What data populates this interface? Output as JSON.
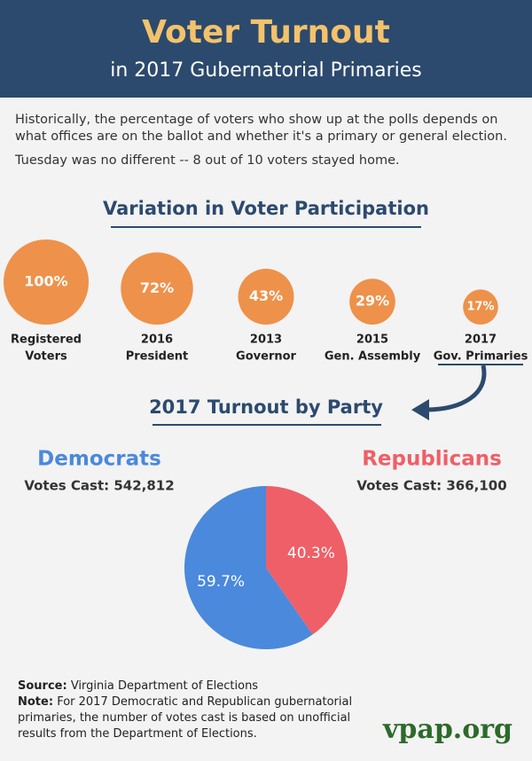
{
  "header": {
    "title": "Voter Turnout",
    "subtitle": "in 2017 Gubernatorial Primaries"
  },
  "intro": [
    "Historically, the percentage of voters who show up at the polls depends on what offices are on the ballot and whether it's a primary or general election.",
    "Tuesday was no different -- 8 out of 10 voters stayed home."
  ],
  "chart_data": [
    {
      "type": "bubble",
      "title": "Variation in Voter Participation",
      "categories": [
        [
          "Registered",
          "Voters"
        ],
        [
          "2016",
          "President"
        ],
        [
          "2013",
          "Governor"
        ],
        [
          "2015",
          "Gen. Assembly"
        ],
        [
          "2017",
          "Gov. Primaries"
        ]
      ],
      "values": [
        100,
        72,
        43,
        29,
        17
      ],
      "value_labels": [
        "100%",
        "72%",
        "43%",
        "29%",
        "17%"
      ],
      "color": "#ee914a"
    },
    {
      "type": "pie",
      "title": "2017 Turnout by Party",
      "categories": [
        "Democrats",
        "Republicans"
      ],
      "subtitles": [
        "Votes Cast: 542,812",
        "Votes Cast: 366,100"
      ],
      "values": [
        59.7,
        40.3
      ],
      "value_labels": [
        "59.7%",
        "40.3%"
      ],
      "colors": [
        "#4a89dc",
        "#ef5f67"
      ]
    }
  ],
  "footer": {
    "source_label": "Source:",
    "source": "Virginia Department of Elections",
    "note_label": "Note:",
    "note": "For 2017 Democratic and Republican gubernatorial primaries, the number of votes cast is based on unofficial results from the Department of Elections.",
    "logo": "vpap.org"
  }
}
